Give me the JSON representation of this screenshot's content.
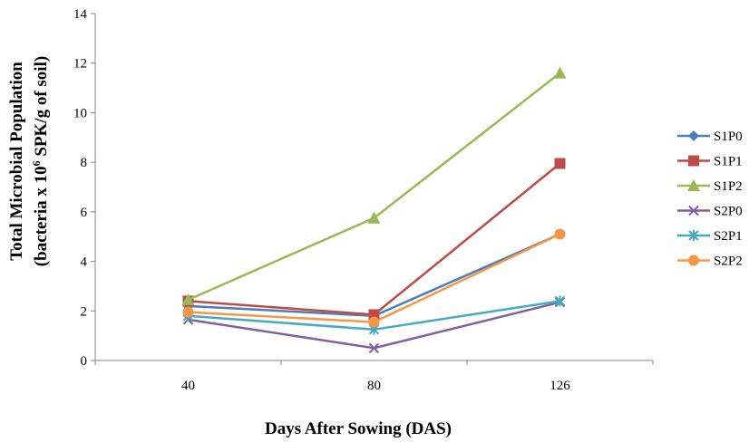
{
  "chart_data": {
    "type": "line",
    "title": "",
    "xlabel": "Days After Sowing (DAS)",
    "ylabel": {
      "line1": "Total Microbial Population",
      "line2_prefix": "(bacteria x  10",
      "line2_sup": "6",
      "line2_suffix": " SPK/g of soil)"
    },
    "categories": [
      "40",
      "80",
      "126"
    ],
    "ylim": [
      0,
      14
    ],
    "yticks": [
      "0",
      "2",
      "4",
      "6",
      "8",
      "10",
      "12",
      "14"
    ],
    "grid": false,
    "legend_position": "right",
    "series": [
      {
        "name": "S1P0",
        "values": [
          2.2,
          1.8,
          5.1
        ],
        "color": "#4a7ebb",
        "marker": "diamond"
      },
      {
        "name": "S1P1",
        "values": [
          2.4,
          1.85,
          7.95
        ],
        "color": "#be4b48",
        "marker": "square"
      },
      {
        "name": "S1P2",
        "values": [
          2.45,
          5.75,
          11.6
        ],
        "color": "#98b954",
        "marker": "triangle"
      },
      {
        "name": "S2P0",
        "values": [
          1.65,
          0.5,
          2.35
        ],
        "color": "#7d60a0",
        "marker": "x"
      },
      {
        "name": "S2P1",
        "values": [
          1.8,
          1.25,
          2.4
        ],
        "color": "#46aac5",
        "marker": "star"
      },
      {
        "name": "S2P2",
        "values": [
          1.95,
          1.55,
          5.1
        ],
        "color": "#f79646",
        "marker": "circle"
      }
    ]
  }
}
